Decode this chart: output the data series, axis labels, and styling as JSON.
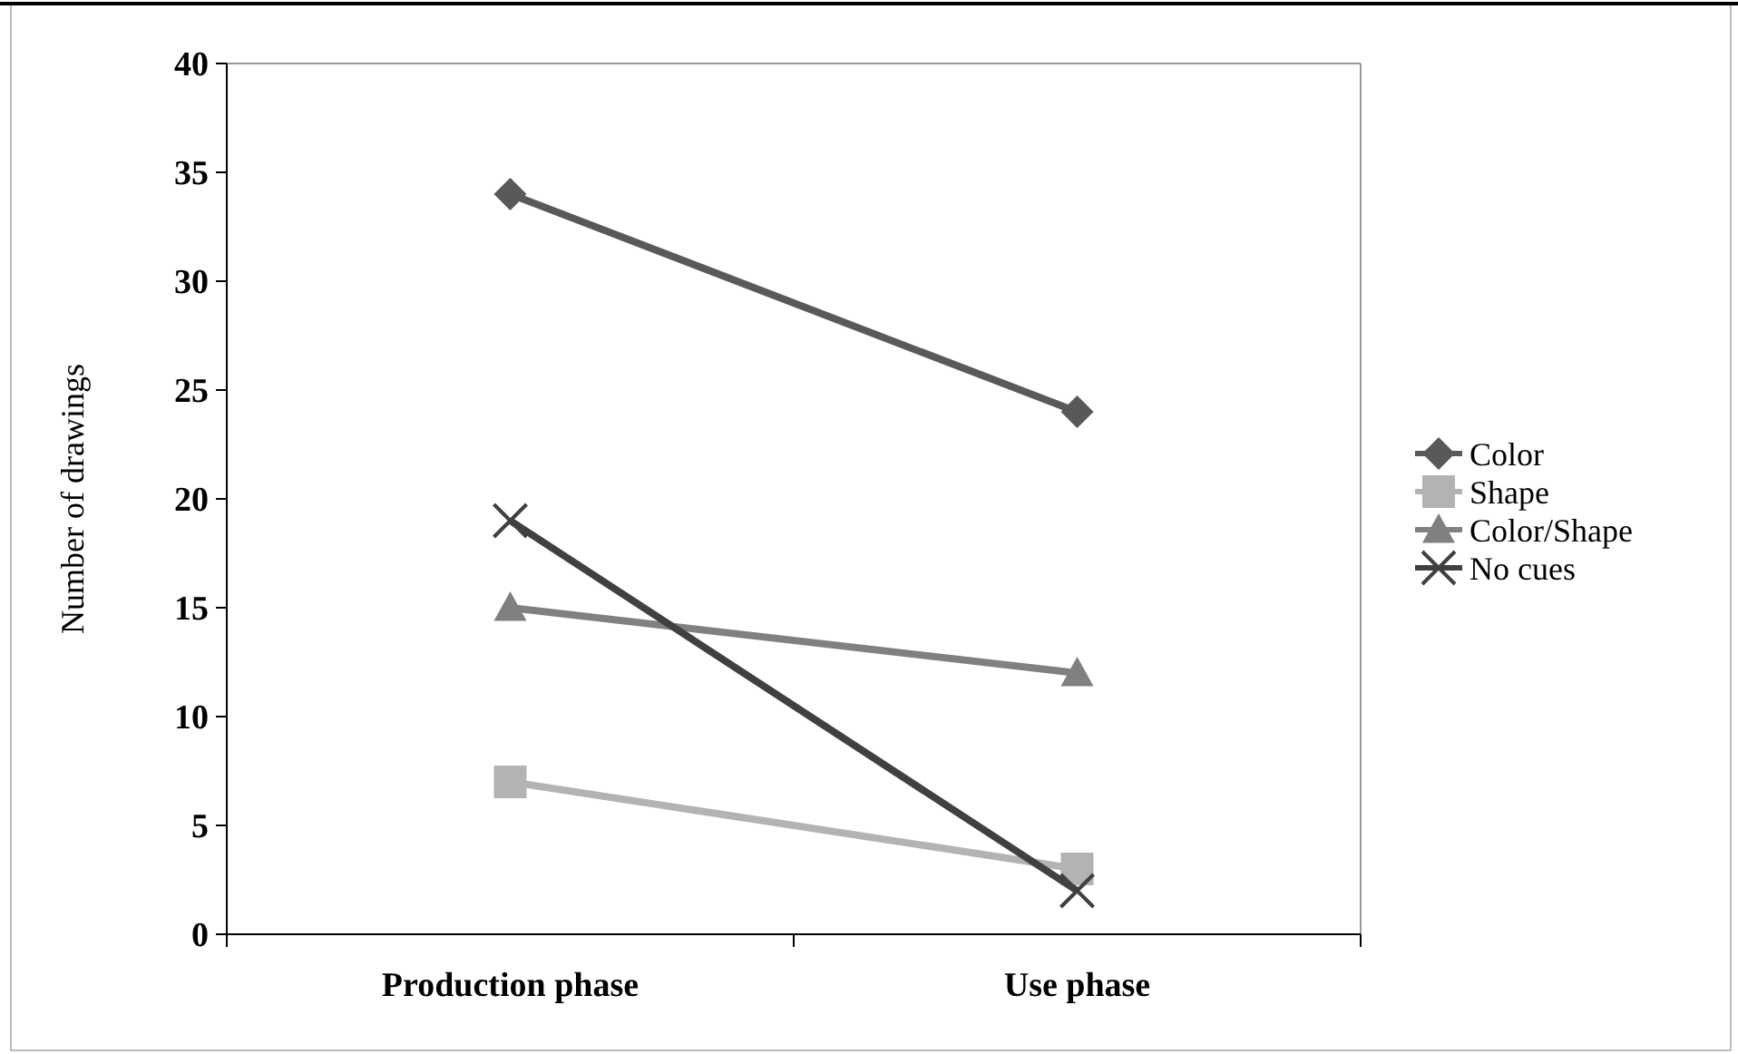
{
  "chart_data": {
    "type": "line",
    "ylabel": "Number of drawings",
    "categories": [
      "Production phase",
      "Use phase"
    ],
    "series": [
      {
        "name": "Color",
        "color": "#595959",
        "marker": "diamond",
        "values": [
          34,
          24
        ]
      },
      {
        "name": "Shape",
        "color": "#b3b3b3",
        "marker": "square",
        "values": [
          7,
          3
        ]
      },
      {
        "name": "Color/Shape",
        "color": "#808080",
        "marker": "triangle",
        "values": [
          15,
          12
        ]
      },
      {
        "name": "No cues",
        "color": "#404040",
        "marker": "cross",
        "values": [
          19,
          2
        ]
      }
    ],
    "ylim": [
      0,
      40
    ],
    "yticks": [
      0,
      5,
      10,
      15,
      20,
      25,
      30,
      35,
      40
    ],
    "legend": "right",
    "grid": false
  }
}
